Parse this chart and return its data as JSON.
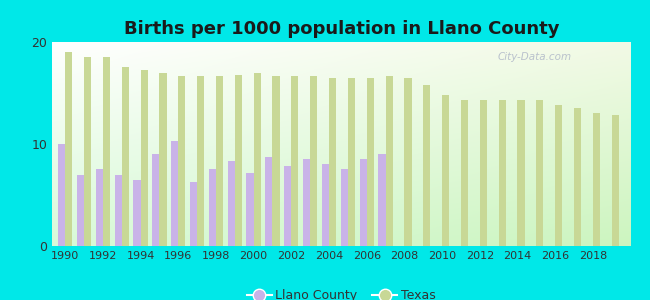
{
  "title": "Births per 1000 population in Llano County",
  "years": [
    1990,
    1991,
    1992,
    1993,
    1994,
    1995,
    1996,
    1997,
    1998,
    1999,
    2000,
    2001,
    2002,
    2003,
    2004,
    2005,
    2006,
    2007,
    2008,
    2009,
    2010,
    2011,
    2012,
    2013,
    2014,
    2015,
    2016,
    2017,
    2018,
    2019
  ],
  "llano": [
    10.0,
    7.0,
    7.5,
    7.0,
    6.5,
    9.0,
    10.3,
    6.3,
    7.5,
    8.3,
    7.2,
    8.7,
    7.8,
    8.5,
    8.0,
    7.5,
    8.5,
    9.0,
    0,
    0,
    0,
    0,
    0,
    0,
    0,
    0,
    0,
    0,
    0,
    0
  ],
  "texas": [
    19.0,
    18.5,
    18.5,
    17.5,
    17.3,
    17.0,
    16.7,
    16.7,
    16.7,
    16.8,
    17.0,
    16.7,
    16.7,
    16.7,
    16.5,
    16.5,
    16.5,
    16.7,
    16.5,
    15.8,
    14.8,
    14.3,
    14.3,
    14.3,
    14.3,
    14.3,
    13.8,
    13.5,
    13.0,
    12.8
  ],
  "llano_color": "#c9b3e8",
  "texas_color": "#c8d896",
  "bg_color": "#00e8e8",
  "ylim": [
    0,
    20
  ],
  "yticks": [
    0,
    10,
    20
  ],
  "bar_width": 0.38,
  "title_fontsize": 13,
  "legend_llano": "Llano County",
  "legend_texas": "Texas",
  "xtick_years": [
    1990,
    1992,
    1994,
    1996,
    1998,
    2000,
    2002,
    2004,
    2006,
    2008,
    2010,
    2012,
    2014,
    2016,
    2018
  ]
}
